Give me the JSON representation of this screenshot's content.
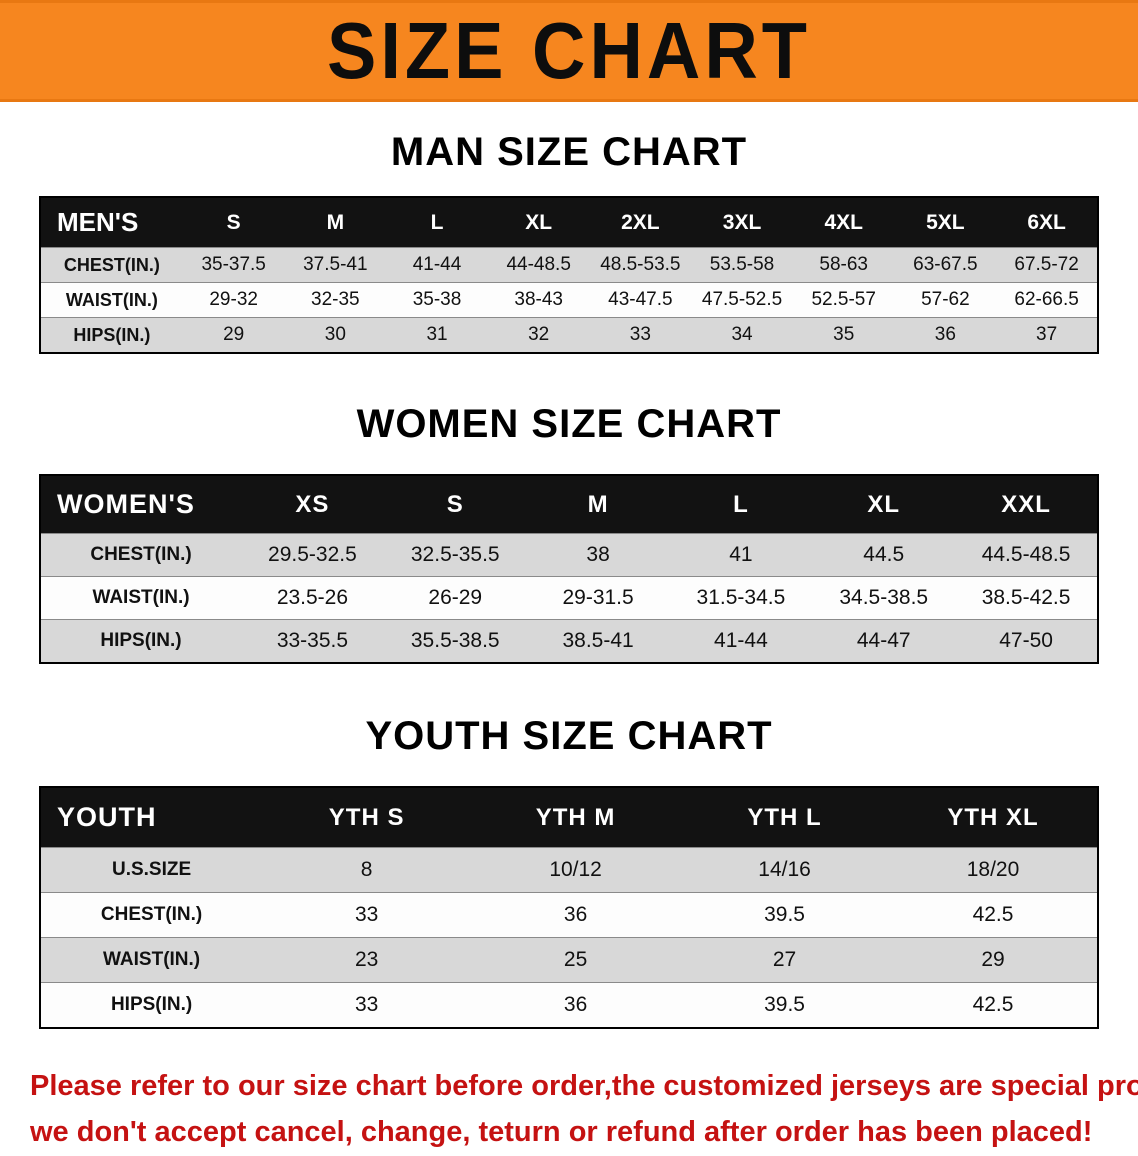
{
  "banner": {
    "title": "SIZE CHART"
  },
  "colors": {
    "banner_bg": "#F6861F",
    "header_bg": "#121212",
    "row_alt": "#D8D8D8",
    "footer_color": "#C51212"
  },
  "sections": [
    {
      "heading": "MAN SIZE CHART",
      "table": {
        "header_label": "MEN'S",
        "sizes": [
          "S",
          "M",
          "L",
          "XL",
          "2XL",
          "3XL",
          "4XL",
          "5XL",
          "6XL"
        ],
        "rows": [
          {
            "label": "CHEST(IN.)",
            "values": [
              "35-37.5",
              "37.5-41",
              "41-44",
              "44-48.5",
              "48.5-53.5",
              "53.5-58",
              "58-63",
              "63-67.5",
              "67.5-72"
            ]
          },
          {
            "label": "WAIST(IN.)",
            "values": [
              "29-32",
              "32-35",
              "35-38",
              "38-43",
              "43-47.5",
              "47.5-52.5",
              "52.5-57",
              "57-62",
              "62-66.5"
            ]
          },
          {
            "label": "HIPS(IN.)",
            "values": [
              "29",
              "30",
              "31",
              "32",
              "33",
              "34",
              "35",
              "36",
              "37"
            ]
          }
        ]
      }
    },
    {
      "heading": "WOMEN SIZE CHART",
      "table": {
        "header_label": "WOMEN'S",
        "sizes": [
          "XS",
          "S",
          "M",
          "L",
          "XL",
          "XXL"
        ],
        "rows": [
          {
            "label": "CHEST(IN.)",
            "values": [
              "29.5-32.5",
              "32.5-35.5",
              "38",
              "41",
              "44.5",
              "44.5-48.5"
            ]
          },
          {
            "label": "WAIST(IN.)",
            "values": [
              "23.5-26",
              "26-29",
              "29-31.5",
              "31.5-34.5",
              "34.5-38.5",
              "38.5-42.5"
            ]
          },
          {
            "label": "HIPS(IN.)",
            "values": [
              "33-35.5",
              "35.5-38.5",
              "38.5-41",
              "41-44",
              "44-47",
              "47-50"
            ]
          }
        ]
      }
    },
    {
      "heading": "YOUTH SIZE CHART",
      "table": {
        "header_label": "YOUTH",
        "sizes": [
          "YTH S",
          "YTH M",
          "YTH L",
          "YTH XL"
        ],
        "rows": [
          {
            "label": "U.S.SIZE",
            "values": [
              "8",
              "10/12",
              "14/16",
              "18/20"
            ]
          },
          {
            "label": "CHEST(IN.)",
            "values": [
              "33",
              "36",
              "39.5",
              "42.5"
            ]
          },
          {
            "label": "WAIST(IN.)",
            "values": [
              "23",
              "25",
              "27",
              "29"
            ]
          },
          {
            "label": "HIPS(IN.)",
            "values": [
              "33",
              "36",
              "39.5",
              "42.5"
            ]
          }
        ]
      }
    }
  ],
  "footer": {
    "line1": "Please refer to our size chart before order,the customized jerseys are special products,",
    "line2": "we don't accept cancel, change, teturn or refund after order has been placed!"
  }
}
